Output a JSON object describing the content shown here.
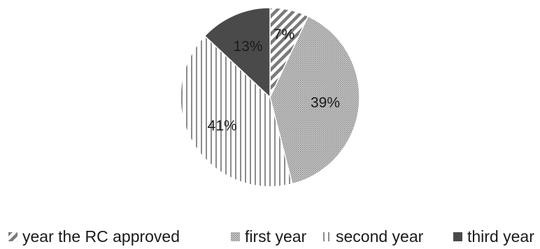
{
  "chart_data": {
    "type": "pie",
    "slices": [
      {
        "label": "year the RC approved",
        "value": 7,
        "display": "7%",
        "pattern": "diagonal",
        "color": "#7a7a7a"
      },
      {
        "label": "first year",
        "value": 39,
        "display": "39%",
        "pattern": "dots",
        "color": "#b4b4b4"
      },
      {
        "label": "second year",
        "value": 41,
        "display": "41%",
        "pattern": "vertical",
        "color": "#8c8c8c"
      },
      {
        "label": "third year",
        "value": 13,
        "display": "13%",
        "pattern": "solid",
        "color": "#4a4a4a"
      }
    ],
    "legend_position": "bottom",
    "title": ""
  }
}
